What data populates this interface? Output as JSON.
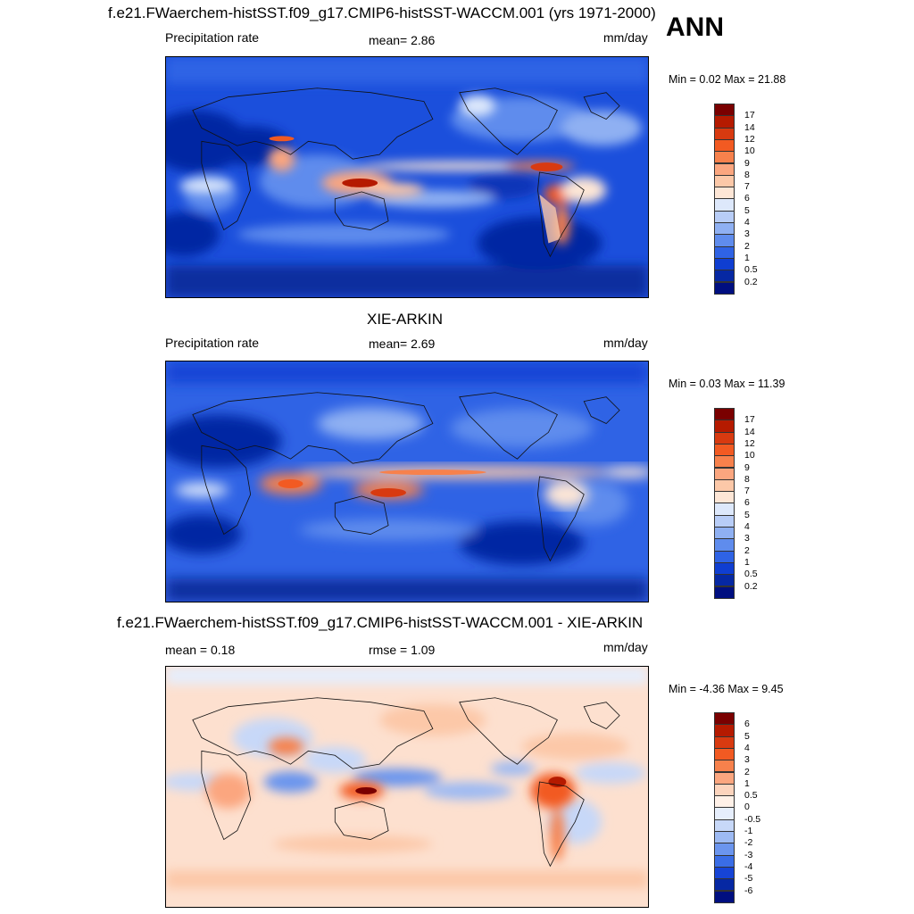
{
  "season": "ANN",
  "panel1": {
    "title": "f.e21.FWaerchem-histSST.f09_g17.CMIP6-histSST-WACCM.001 (yrs 1971-2000)",
    "variable": "Precipitation rate",
    "mean_text": "mean=   2.86",
    "units": "mm/day",
    "minmax": "Min =   0.02 Max =  21.88"
  },
  "panel2": {
    "title": "XIE-ARKIN",
    "variable": "Precipitation rate",
    "mean_text": "mean=   2.69",
    "units": "mm/day",
    "minmax": "Min =   0.03 Max =  11.39"
  },
  "panel3": {
    "title": "f.e21.FWaerchem-histSST.f09_g17.CMIP6-histSST-WACCM.001 - XIE-ARKIN",
    "mean_text": "mean =   0.18",
    "rmse_text": "rmse =   1.09",
    "units": "mm/day",
    "minmax": "Min =  -4.36 Max =   9.45"
  },
  "colorbar_prec": {
    "labels": [
      "17",
      "14",
      "12",
      "10",
      "9",
      "8",
      "7",
      "6",
      "5",
      "4",
      "3",
      "2",
      "1",
      "0.5",
      "0.2"
    ],
    "colors": [
      "#7a0000",
      "#b51a00",
      "#d83a10",
      "#f25a22",
      "#f7814c",
      "#fba67f",
      "#fcc8a8",
      "#fde6d6",
      "#dde8fb",
      "#b8cdf7",
      "#8fb0f2",
      "#5f8ced",
      "#2f63e5",
      "#0f3ed1",
      "#0628a3",
      "#000f80"
    ]
  },
  "colorbar_diff": {
    "labels": [
      "6",
      "5",
      "4",
      "3",
      "2",
      "1",
      "0.5",
      "0",
      "-0.5",
      "-1",
      "-2",
      "-3",
      "-4",
      "-5",
      "-6"
    ],
    "colors": [
      "#7a0000",
      "#b51a00",
      "#d83a10",
      "#f25a22",
      "#f7814c",
      "#fba67f",
      "#fcd4bd",
      "#fff1e8",
      "#e6eefc",
      "#c7d8f8",
      "#9dbaf3",
      "#6b95ee",
      "#3a6de6",
      "#1644d6",
      "#0628a3",
      "#000f80"
    ]
  }
}
